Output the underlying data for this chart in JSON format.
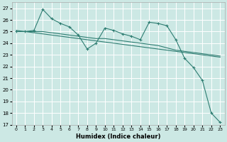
{
  "xlabel": "Humidex (Indice chaleur)",
  "bg_color": "#cce8e4",
  "grid_color": "#ffffff",
  "line_color": "#2e7d72",
  "xlim": [
    -0.5,
    23.5
  ],
  "ylim": [
    17,
    27.5
  ],
  "yticks": [
    17,
    18,
    19,
    20,
    21,
    22,
    23,
    24,
    25,
    26,
    27
  ],
  "xticks": [
    0,
    1,
    2,
    3,
    4,
    5,
    6,
    7,
    8,
    9,
    10,
    11,
    12,
    13,
    14,
    15,
    16,
    17,
    18,
    19,
    20,
    21,
    22,
    23
  ],
  "series1_x": [
    0,
    1,
    2,
    3,
    4,
    5,
    6,
    7,
    8,
    9,
    10,
    11,
    12,
    13,
    14,
    15,
    16,
    17,
    18,
    19,
    20,
    21,
    22,
    23
  ],
  "series1_y": [
    25.0,
    25.0,
    25.1,
    26.9,
    26.1,
    25.7,
    25.4,
    24.7,
    23.5,
    24.0,
    25.3,
    25.1,
    24.8,
    24.6,
    24.3,
    25.8,
    25.7,
    25.5,
    24.3,
    22.7,
    21.9,
    20.8,
    18.0,
    17.2
  ],
  "series2_x": [
    0,
    1,
    2,
    3,
    4,
    5,
    6,
    7,
    8,
    9,
    10,
    11,
    12,
    13,
    14,
    15,
    16,
    17,
    18,
    19,
    20,
    21,
    22,
    23
  ],
  "series2_y": [
    25.0,
    25.0,
    25.0,
    25.0,
    24.9,
    24.8,
    24.7,
    24.6,
    24.5,
    24.4,
    24.4,
    24.3,
    24.2,
    24.1,
    24.0,
    23.9,
    23.8,
    23.6,
    23.4,
    23.3,
    23.2,
    23.1,
    23.0,
    22.9
  ],
  "series3_x": [
    0,
    1,
    2,
    3,
    4,
    5,
    6,
    7,
    8,
    9,
    10,
    11,
    12,
    13,
    14,
    15,
    16,
    17,
    18,
    19,
    20,
    21,
    22,
    23
  ],
  "series3_y": [
    25.1,
    25.0,
    24.9,
    24.8,
    24.7,
    24.6,
    24.5,
    24.4,
    24.3,
    24.2,
    24.1,
    24.0,
    23.9,
    23.8,
    23.7,
    23.6,
    23.5,
    23.4,
    23.3,
    23.2,
    23.1,
    23.0,
    22.9,
    22.8
  ]
}
